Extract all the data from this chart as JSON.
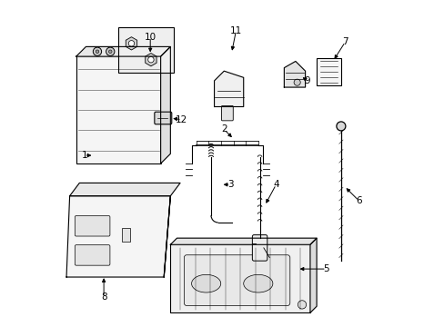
{
  "bg_color": "#ffffff",
  "line_color": "#000000",
  "label_color": "#000000",
  "figsize": [
    4.89,
    3.6
  ],
  "dpi": 100
}
